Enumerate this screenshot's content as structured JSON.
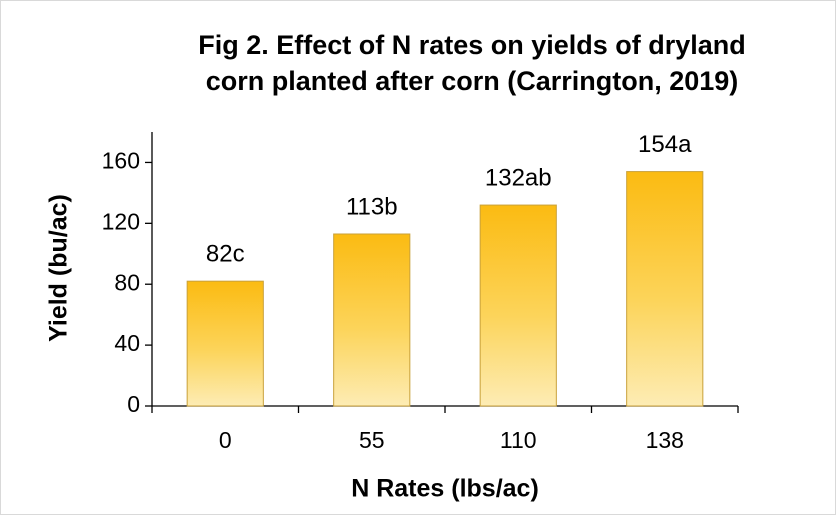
{
  "chart_data": {
    "type": "bar",
    "title": [
      "Fig 2. Effect of N rates on yields of dryland",
      "corn planted after corn (Carrington, 2019)"
    ],
    "x_label": "N Rates (lbs/ac)",
    "y_label": "Yield (bu/ac)",
    "categories": [
      "0",
      "55",
      "110",
      "138"
    ],
    "values": [
      82,
      113,
      132,
      154
    ],
    "value_labels": [
      "82c",
      "113b",
      "132ab",
      "154a"
    ],
    "color": "#fbbf1b",
    "ylim": [
      0,
      180
    ],
    "yticks": [
      0,
      40,
      80,
      120,
      160
    ],
    "grid": false
  }
}
